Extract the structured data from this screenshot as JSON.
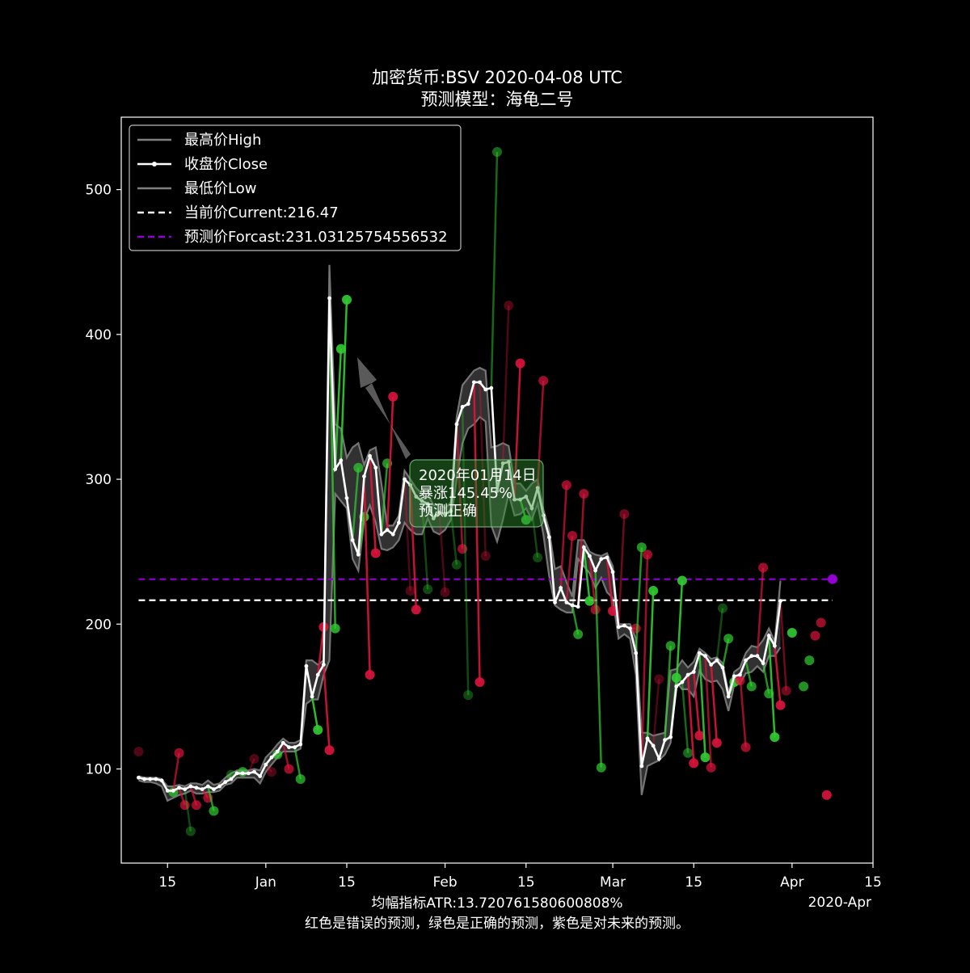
{
  "chart_data": {
    "type": "line",
    "title": "加密货币:BSV 2020-04-08 UTC",
    "subtitle": "预测模型：海龟二号",
    "x_axis": {
      "range": [
        "2019-12-07",
        "2020-04-15"
      ],
      "ticks": [
        {
          "date": "2019-12-15",
          "label": "15"
        },
        {
          "date": "2020-01-01",
          "label": "Jan"
        },
        {
          "date": "2020-01-15",
          "label": "15"
        },
        {
          "date": "2020-02-01",
          "label": "Feb"
        },
        {
          "date": "2020-02-15",
          "label": "15"
        },
        {
          "date": "2020-03-01",
          "label": "Mar"
        },
        {
          "date": "2020-03-15",
          "label": "15"
        },
        {
          "date": "2020-04-01",
          "label": "Apr"
        },
        {
          "date": "2020-04-15",
          "label": "15"
        }
      ],
      "offset_label": "2020-Apr"
    },
    "y_axis": {
      "range": [
        35,
        550
      ],
      "ticks": [
        100,
        200,
        300,
        400,
        500
      ]
    },
    "footer_lines": [
      "均幅指标ATR:13.720761580600808%",
      "红色是错误的预测，绿色是正确的预测，紫色是对未来的预测。"
    ],
    "legend": {
      "position": "upper-left",
      "entries": [
        {
          "label": "最高价High",
          "style": "high"
        },
        {
          "label": "收盘价Close",
          "style": "close"
        },
        {
          "label": "最低价Low",
          "style": "low"
        },
        {
          "label": "当前价Current:216.47",
          "style": "current"
        },
        {
          "label": "预测价Forcast:231.03125754556532",
          "style": "forecast"
        }
      ]
    },
    "current_price": 216.47,
    "forecast_price": 231.03125754556532,
    "hline_range": [
      "2019-12-10",
      "2020-04-08"
    ],
    "series": [
      {
        "name": "收盘价Close",
        "start_date": "2019-12-10",
        "close": [
          94,
          93,
          93,
          93,
          92,
          85,
          85,
          87,
          86,
          88,
          87,
          86,
          88,
          86,
          88,
          91,
          93,
          97,
          97,
          97,
          98,
          95,
          103,
          108,
          112,
          118,
          115,
          115,
          117,
          171,
          150,
          165,
          172,
          425,
          307,
          313,
          287,
          258,
          248,
          302,
          316,
          308,
          262,
          265,
          262,
          270,
          300,
          296,
          288,
          285,
          283,
          273,
          277,
          276,
          278,
          338,
          350,
          352,
          367,
          367,
          362,
          363,
          292,
          311,
          312,
          286,
          286,
          288,
          280,
          294,
          275,
          260,
          215,
          225,
          215,
          213,
          212,
          253,
          247,
          237,
          245,
          246,
          236,
          198,
          199,
          197,
          180,
          102,
          121,
          116,
          107,
          120,
          122,
          157,
          160,
          165,
          167,
          180,
          178,
          172,
          175,
          170,
          150,
          164,
          165,
          175,
          178,
          178,
          173,
          192,
          185,
          216
        ],
        "high": [
          95,
          94,
          94,
          94,
          93,
          88,
          88,
          89,
          88,
          90,
          90,
          89,
          92,
          89,
          90,
          94,
          97,
          99,
          99,
          99,
          100,
          99,
          108,
          112,
          117,
          121,
          118,
          118,
          120,
          175,
          175,
          172,
          175,
          448,
          338,
          335,
          315,
          322,
          325,
          310,
          320,
          322,
          297,
          268,
          268,
          275,
          306,
          300,
          294,
          290,
          290,
          282,
          283,
          280,
          284,
          343,
          365,
          370,
          375,
          377,
          375,
          322,
          323,
          325,
          323,
          297,
          297,
          292,
          297,
          300,
          279,
          265,
          238,
          240,
          229,
          219,
          258,
          258,
          250,
          248,
          247,
          249,
          240,
          200,
          200,
          200,
          190,
          125,
          125,
          123,
          124,
          125,
          168,
          169,
          175,
          170,
          174,
          183,
          180,
          176,
          177,
          173,
          153,
          167,
          170,
          180,
          185,
          184,
          189,
          197,
          188,
          230
        ],
        "low": [
          92,
          91,
          91,
          90,
          88,
          78,
          80,
          82,
          83,
          85,
          83,
          83,
          84,
          84,
          85,
          89,
          90,
          94,
          94,
          94,
          94,
          90,
          98,
          103,
          108,
          112,
          112,
          112,
          114,
          145,
          148,
          148,
          165,
          175,
          290,
          285,
          280,
          245,
          237,
          272,
          282,
          270,
          252,
          251,
          253,
          258,
          270,
          265,
          262,
          262,
          273,
          264,
          262,
          265,
          272,
          300,
          325,
          335,
          338,
          343,
          340,
          268,
          257,
          272,
          290,
          275,
          276,
          280,
          272,
          283,
          262,
          233,
          213,
          210,
          208,
          208,
          245,
          240,
          235,
          225,
          232,
          222,
          218,
          190,
          193,
          190,
          165,
          82,
          102,
          104,
          106,
          110,
          118,
          160,
          155,
          155,
          150,
          168,
          162,
          160,
          161,
          155,
          140,
          158,
          159,
          166,
          167,
          171,
          167,
          178,
          178,
          184
        ]
      }
    ],
    "prediction_markers": [
      {
        "date": "2019-12-10",
        "value": 112,
        "color": "#dc143c",
        "alpha": 0.35
      },
      {
        "date": "2019-12-16",
        "value": 84,
        "color": "#32cd32",
        "alpha": 0.7
      },
      {
        "date": "2019-12-17",
        "value": 111,
        "color": "#dc143c",
        "alpha": 0.7
      },
      {
        "date": "2019-12-18",
        "value": 75,
        "color": "#dc143c",
        "alpha": 0.7
      },
      {
        "date": "2019-12-19",
        "value": 57,
        "color": "#32cd32",
        "alpha": 0.35
      },
      {
        "date": "2019-12-20",
        "value": 75,
        "color": "#dc143c",
        "alpha": 0.7
      },
      {
        "date": "2019-12-22",
        "value": 80,
        "color": "#dc143c",
        "alpha": 0.7
      },
      {
        "date": "2019-12-23",
        "value": 71,
        "color": "#32cd32",
        "alpha": 0.7
      },
      {
        "date": "2019-12-26",
        "value": 96,
        "color": "#32cd32",
        "alpha": 0.35
      },
      {
        "date": "2019-12-28",
        "value": 98,
        "color": "#32cd32",
        "alpha": 0.7
      },
      {
        "date": "2019-12-30",
        "value": 107,
        "color": "#dc143c",
        "alpha": 0.35
      },
      {
        "date": "2020-01-02",
        "value": 98,
        "color": "#dc143c",
        "alpha": 0.35
      },
      {
        "date": "2020-01-03",
        "value": 110,
        "color": "#32cd32",
        "alpha": 0.7
      },
      {
        "date": "2020-01-05",
        "value": 100,
        "color": "#dc143c",
        "alpha": 0.7
      },
      {
        "date": "2020-01-07",
        "value": 93,
        "color": "#32cd32",
        "alpha": 0.7
      },
      {
        "date": "2020-01-10",
        "value": 127,
        "color": "#32cd32",
        "alpha": 0.9
      },
      {
        "date": "2020-01-11",
        "value": 198,
        "color": "#dc143c",
        "alpha": 0.9
      },
      {
        "date": "2020-01-12",
        "value": 113,
        "color": "#dc143c",
        "alpha": 0.9
      },
      {
        "date": "2020-01-13",
        "value": 197,
        "color": "#32cd32",
        "alpha": 0.8
      },
      {
        "date": "2020-01-14",
        "value": 390,
        "color": "#32cd32",
        "alpha": 0.9
      },
      {
        "date": "2020-01-15",
        "value": 424,
        "color": "#32cd32",
        "alpha": 0.9
      },
      {
        "date": "2020-01-17",
        "value": 308,
        "color": "#32cd32",
        "alpha": 0.7
      },
      {
        "date": "2020-01-18",
        "value": 274,
        "color": "#32cd32",
        "alpha": 0.9
      },
      {
        "date": "2020-01-19",
        "value": 165,
        "color": "#dc143c",
        "alpha": 0.9
      },
      {
        "date": "2020-01-20",
        "value": 249,
        "color": "#dc143c",
        "alpha": 0.9
      },
      {
        "date": "2020-01-22",
        "value": 311,
        "color": "#32cd32",
        "alpha": 0.7
      },
      {
        "date": "2020-01-23",
        "value": 357,
        "color": "#dc143c",
        "alpha": 0.9
      },
      {
        "date": "2020-01-26",
        "value": 223,
        "color": "#dc143c",
        "alpha": 0.35
      },
      {
        "date": "2020-01-27",
        "value": 210,
        "color": "#dc143c",
        "alpha": 0.9
      },
      {
        "date": "2020-01-29",
        "value": 224,
        "color": "#32cd32",
        "alpha": 0.35
      },
      {
        "date": "2020-02-01",
        "value": 222,
        "color": "#dc143c",
        "alpha": 0.35
      },
      {
        "date": "2020-02-03",
        "value": 241,
        "color": "#32cd32",
        "alpha": 0.35
      },
      {
        "date": "2020-02-04",
        "value": 252,
        "color": "#dc143c",
        "alpha": 0.7
      },
      {
        "date": "2020-02-05",
        "value": 151,
        "color": "#32cd32",
        "alpha": 0.35
      },
      {
        "date": "2020-02-07",
        "value": 160,
        "color": "#dc143c",
        "alpha": 0.9
      },
      {
        "date": "2020-02-08",
        "value": 247,
        "color": "#dc143c",
        "alpha": 0.35
      },
      {
        "date": "2020-02-10",
        "value": 526,
        "color": "#32cd32",
        "alpha": 0.5
      },
      {
        "date": "2020-02-12",
        "value": 420,
        "color": "#dc143c",
        "alpha": 0.35
      },
      {
        "date": "2020-02-14",
        "value": 380,
        "color": "#dc143c",
        "alpha": 0.9
      },
      {
        "date": "2020-02-15",
        "value": 272,
        "color": "#32cd32",
        "alpha": 0.9
      },
      {
        "date": "2020-02-17",
        "value": 246,
        "color": "#32cd32",
        "alpha": 0.35
      },
      {
        "date": "2020-02-18",
        "value": 368,
        "color": "#dc143c",
        "alpha": 0.7
      },
      {
        "date": "2020-02-22",
        "value": 296,
        "color": "#dc143c",
        "alpha": 0.7
      },
      {
        "date": "2020-02-23",
        "value": 261,
        "color": "#dc143c",
        "alpha": 0.7
      },
      {
        "date": "2020-02-24",
        "value": 193,
        "color": "#32cd32",
        "alpha": 0.7
      },
      {
        "date": "2020-02-25",
        "value": 290,
        "color": "#dc143c",
        "alpha": 0.7
      },
      {
        "date": "2020-02-26",
        "value": 216,
        "color": "#32cd32",
        "alpha": 0.9
      },
      {
        "date": "2020-02-27",
        "value": 210,
        "color": "#dc143c",
        "alpha": 0.7
      },
      {
        "date": "2020-02-28",
        "value": 101,
        "color": "#32cd32",
        "alpha": 0.7
      },
      {
        "date": "2020-03-01",
        "value": 209,
        "color": "#dc143c",
        "alpha": 0.9
      },
      {
        "date": "2020-03-03",
        "value": 276,
        "color": "#dc143c",
        "alpha": 0.5
      },
      {
        "date": "2020-03-05",
        "value": 197,
        "color": "#dc143c",
        "alpha": 0.7
      },
      {
        "date": "2020-03-06",
        "value": 253,
        "color": "#32cd32",
        "alpha": 0.7
      },
      {
        "date": "2020-03-07",
        "value": 248,
        "color": "#dc143c",
        "alpha": 0.7
      },
      {
        "date": "2020-03-08",
        "value": 223,
        "color": "#32cd32",
        "alpha": 0.9
      },
      {
        "date": "2020-03-09",
        "value": 162,
        "color": "#dc143c",
        "alpha": 0.35
      },
      {
        "date": "2020-03-11",
        "value": 185,
        "color": "#32cd32",
        "alpha": 0.7
      },
      {
        "date": "2020-03-12",
        "value": 163,
        "color": "#32cd32",
        "alpha": 0.9
      },
      {
        "date": "2020-03-13",
        "value": 230,
        "color": "#32cd32",
        "alpha": 0.9
      },
      {
        "date": "2020-03-14",
        "value": 111,
        "color": "#32cd32",
        "alpha": 0.5
      },
      {
        "date": "2020-03-15",
        "value": 104,
        "color": "#dc143c",
        "alpha": 0.9
      },
      {
        "date": "2020-03-16",
        "value": 123,
        "color": "#dc143c",
        "alpha": 0.9
      },
      {
        "date": "2020-03-17",
        "value": 108,
        "color": "#32cd32",
        "alpha": 0.9
      },
      {
        "date": "2020-03-18",
        "value": 101,
        "color": "#dc143c",
        "alpha": 0.7
      },
      {
        "date": "2020-03-19",
        "value": 118,
        "color": "#dc143c",
        "alpha": 0.9
      },
      {
        "date": "2020-03-20",
        "value": 211,
        "color": "#32cd32",
        "alpha": 0.35
      },
      {
        "date": "2020-03-21",
        "value": 190,
        "color": "#32cd32",
        "alpha": 0.7
      },
      {
        "date": "2020-03-22",
        "value": 160,
        "color": "#32cd32",
        "alpha": 0.9
      },
      {
        "date": "2020-03-23",
        "value": 161,
        "color": "#dc143c",
        "alpha": 0.7
      },
      {
        "date": "2020-03-24",
        "value": 115,
        "color": "#dc143c",
        "alpha": 0.7
      },
      {
        "date": "2020-03-25",
        "value": 157,
        "color": "#32cd32",
        "alpha": 0.7
      },
      {
        "date": "2020-03-27",
        "value": 239,
        "color": "#dc143c",
        "alpha": 0.7
      },
      {
        "date": "2020-03-28",
        "value": 152,
        "color": "#32cd32",
        "alpha": 0.7
      },
      {
        "date": "2020-03-29",
        "value": 122,
        "color": "#32cd32",
        "alpha": 0.9
      },
      {
        "date": "2020-03-30",
        "value": 144,
        "color": "#dc143c",
        "alpha": 0.9
      },
      {
        "date": "2020-03-31",
        "value": 154,
        "color": "#dc143c",
        "alpha": 0.5
      },
      {
        "date": "2020-04-01",
        "value": 194,
        "color": "#32cd32",
        "alpha": 0.9
      },
      {
        "date": "2020-04-03",
        "value": 157,
        "color": "#32cd32",
        "alpha": 0.7
      },
      {
        "date": "2020-04-04",
        "value": 175,
        "color": "#32cd32",
        "alpha": 0.7
      },
      {
        "date": "2020-04-05",
        "value": 192,
        "color": "#dc143c",
        "alpha": 0.7
      },
      {
        "date": "2020-04-06",
        "value": 201,
        "color": "#dc143c",
        "alpha": 0.7
      },
      {
        "date": "2020-04-07",
        "value": 82,
        "color": "#dc143c",
        "alpha": 0.9
      },
      {
        "date": "2020-04-08",
        "value": 231.03,
        "color": "#9400d3",
        "alpha": 1.0
      }
    ],
    "annotation": {
      "lines": [
        "2020年01月14日",
        "暴涨145.45%",
        "预测正确"
      ],
      "target_date": "2020-01-14",
      "target_value": 390,
      "box_color": "#2e8b2e"
    }
  },
  "colors": {
    "background": "#000000",
    "foreground": "#ffffff",
    "correct": "#32cd32",
    "wrong": "#dc143c",
    "forecast": "#9400d3",
    "band": "#808080"
  }
}
